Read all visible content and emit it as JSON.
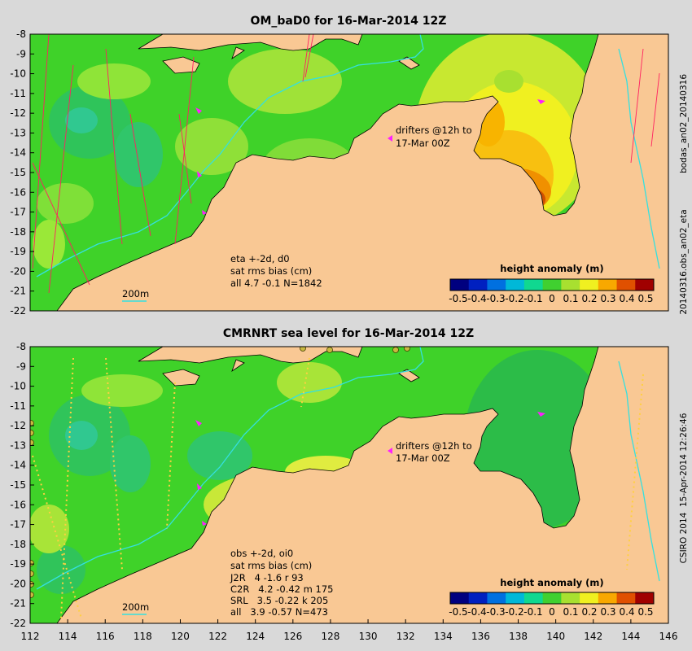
{
  "colors": {
    "background": "#d9d9d9",
    "land": "#f9c894",
    "ocean_base": "#3fd229",
    "coast_line": "#000000",
    "isobath_line": "#34e0e0",
    "drifter": "#ff1fff",
    "track_line": "#ff2060"
  },
  "panels": [
    {
      "title": "OM_baD0 for 16-Mar-2014 12Z",
      "drifter_label_1": "drifters @12h to",
      "drifter_label_2": "17-Mar 00Z",
      "stats": [
        "eta +-2d, d0",
        "sat rms bias (cm)",
        "all 4.7 -0.1 N=1842"
      ],
      "isobath_label": "200m",
      "colorbar_title": "height anomaly (m)",
      "side_label_top": "bodas_an02_20140316",
      "side_label_bottom": "20140316.obs_an02_eta"
    },
    {
      "title": "CMRNRT sea level  for 16-Mar-2014 12Z",
      "drifter_label_1": "drifters @12h to",
      "drifter_label_2": "17-Mar 00Z",
      "stats": [
        "obs +-2d, oi0",
        "sat rms bias (cm)",
        "J2R   4 -1.6 r 93",
        "C2R   4.2 -0.42 m 175",
        "SRL   3.5 -0.22 k 205",
        "all   3.9 -0.57 N=473"
      ],
      "isobath_label": "200m",
      "colorbar_title": "height anomaly (m)",
      "side_label": "CSIRO 2014  15-Apr-2014 12:26:46"
    }
  ],
  "colorbar": {
    "ticks": [
      "-0.5",
      "-0.4",
      "-0.3",
      "-0.2",
      "-0.1",
      "0",
      "0.1",
      "0.2",
      "0.3",
      "0.4",
      "0.5"
    ],
    "colors": [
      "#00007f",
      "#0020c0",
      "#0070e0",
      "#00b8d8",
      "#10d890",
      "#40d030",
      "#a8e030",
      "#f0f020",
      "#f8a800",
      "#e05000",
      "#a00000"
    ]
  },
  "y_ticks": [
    "-8",
    "-9",
    "-10",
    "-11",
    "-12",
    "-13",
    "-14",
    "-15",
    "-16",
    "-17",
    "-18",
    "-19",
    "-20",
    "-21",
    "-22"
  ],
  "x_ticks": [
    "112",
    "114",
    "116",
    "118",
    "120",
    "122",
    "124",
    "126",
    "128",
    "130",
    "132",
    "134",
    "136",
    "138",
    "140",
    "142",
    "144",
    "146"
  ]
}
